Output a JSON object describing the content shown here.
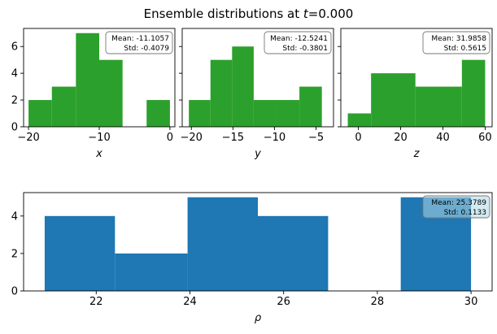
{
  "figure": {
    "title_prefix": "Ensemble distributions at ",
    "title_var": "t",
    "title_suffix": "=0.000"
  },
  "chart_data": [
    {
      "type": "histogram",
      "xlabel": "x",
      "color": "#2ca02c",
      "bin_edges": [
        -20,
        -16.7,
        -13.3,
        -10,
        -6.7,
        -3.3,
        0
      ],
      "counts": [
        2,
        3,
        7,
        5,
        0,
        2
      ],
      "xlim": [
        -20.7,
        0.7
      ],
      "ylim": [
        0,
        7.35
      ],
      "xticks": [
        -20,
        -10,
        0
      ],
      "xtick_labels": [
        "−20",
        "−10",
        "0"
      ],
      "yticks": [
        0,
        2,
        4,
        6
      ],
      "ytick_labels": [
        "0",
        "2",
        "4",
        "6"
      ],
      "stats": {
        "mean": "Mean: -11.1057",
        "std": "Std: -0.4079"
      }
    },
    {
      "type": "histogram",
      "xlabel": "y",
      "color": "#2ca02c",
      "bin_edges": [
        -20.3,
        -17.7,
        -15.1,
        -12.5,
        -9.8,
        -7.0,
        -4.3
      ],
      "counts": [
        2,
        5,
        6,
        2,
        2,
        3
      ],
      "xlim": [
        -21.1,
        -2.9
      ],
      "ylim": [
        0,
        7.35
      ],
      "xticks": [
        -20,
        -15,
        -10,
        -5
      ],
      "xtick_labels": [
        "−20",
        "−15",
        "−10",
        "−5"
      ],
      "yticks": [
        0,
        2,
        4,
        6
      ],
      "stats": {
        "mean": "Mean: -12.5241",
        "std": "Std: -0.3801"
      }
    },
    {
      "type": "histogram",
      "xlabel": "z",
      "color": "#2ca02c",
      "bin_edges": [
        -5,
        6,
        27,
        49,
        60
      ],
      "counts": [
        1,
        4,
        3,
        5
      ],
      "xlim": [
        -8.3,
        63.3
      ],
      "ylim": [
        0,
        7.35
      ],
      "xticks": [
        0,
        20,
        40,
        60
      ],
      "xtick_labels": [
        "0",
        "20",
        "40",
        "60"
      ],
      "yticks": [
        0,
        2,
        4,
        6
      ],
      "stats": {
        "mean": "Mean: 31.9858",
        "std": "Std: 0.5615"
      }
    },
    {
      "type": "histogram",
      "xlabel": "ρ",
      "color": "#1f77b4",
      "bin_edges": [
        20.9,
        22.4,
        23.95,
        25.45,
        26.95,
        28.5,
        30.0
      ],
      "counts": [
        4,
        2,
        5,
        4,
        0,
        5
      ],
      "xlim": [
        20.45,
        30.45
      ],
      "ylim": [
        0,
        5.25
      ],
      "xticks": [
        22,
        24,
        26,
        28,
        30
      ],
      "xtick_labels": [
        "22",
        "24",
        "26",
        "28",
        "30"
      ],
      "yticks": [
        0,
        2,
        4
      ],
      "ytick_labels": [
        "0",
        "2",
        "4"
      ],
      "stats": {
        "mean": "Mean: 25.3789",
        "std": "Std: 0.1133"
      }
    }
  ]
}
